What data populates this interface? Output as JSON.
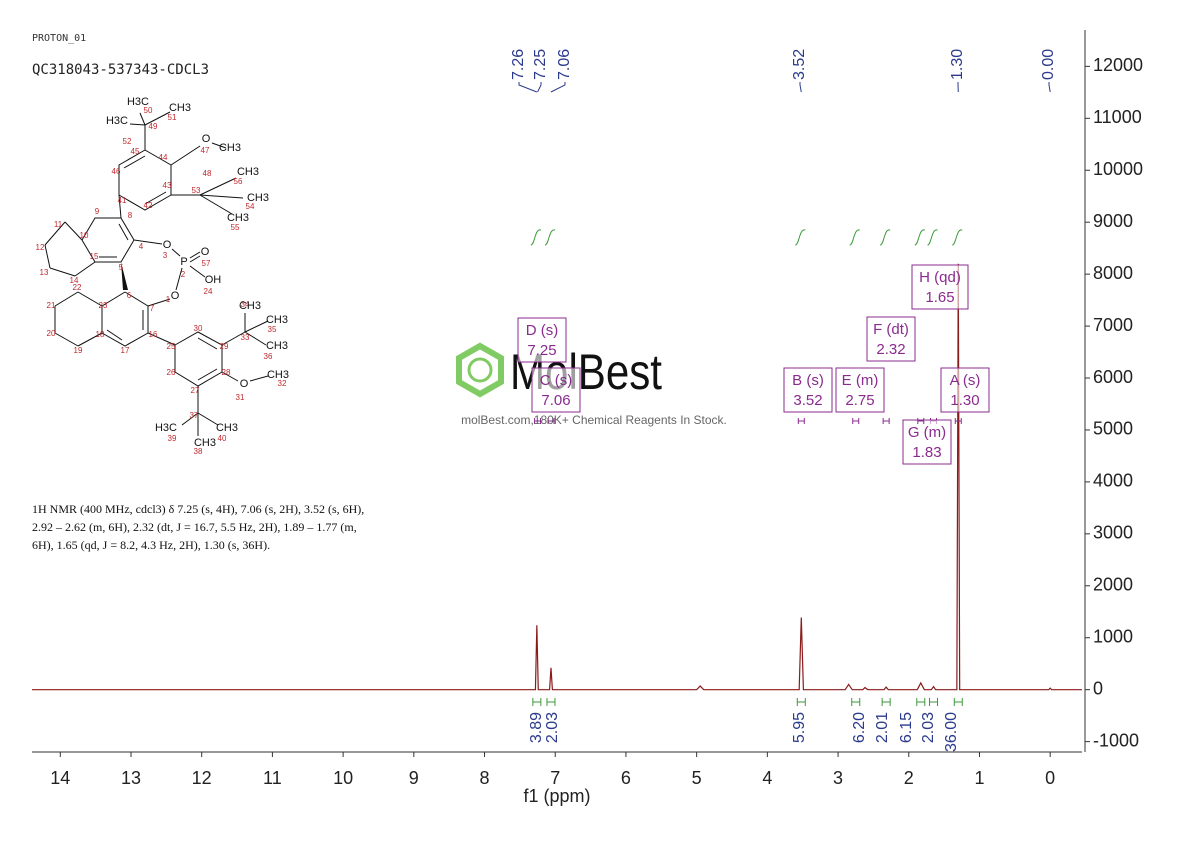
{
  "chart_data": {
    "type": "line",
    "title": "PROTON_01",
    "subtitle": "QC318043-537343-CDCL3",
    "xlabel": "f1 (ppm)",
    "color": "#8b1a1a",
    "x": [
      14.4,
      7.4,
      7.28,
      7.26,
      7.24,
      7.08,
      7.06,
      7.04,
      5.0,
      4.95,
      4.9,
      3.55,
      3.52,
      3.49,
      2.9,
      2.85,
      2.8,
      2.65,
      2.62,
      2.58,
      2.35,
      2.32,
      2.29,
      1.88,
      1.83,
      1.78,
      1.68,
      1.65,
      1.62,
      1.32,
      1.3,
      1.28,
      0.02,
      0,
      -0.02,
      -0.45
    ],
    "values": [
      0,
      0,
      0,
      1240,
      0,
      0,
      420,
      0,
      0,
      70,
      0,
      0,
      1390,
      0,
      0,
      100,
      0,
      0,
      40,
      0,
      0,
      50,
      0,
      0,
      130,
      0,
      0,
      60,
      0,
      0,
      8200,
      0,
      0,
      30,
      0,
      0
    ],
    "xlim": [
      14.4,
      -0.45
    ],
    "xticks": [
      14,
      13,
      12,
      11,
      10,
      9,
      8,
      7,
      6,
      5,
      4,
      3,
      2,
      1,
      0
    ],
    "ylim": [
      -1200,
      12700
    ],
    "yticks": [
      -1000,
      0,
      1000,
      2000,
      3000,
      4000,
      5000,
      6000,
      7000,
      8000,
      9000,
      10000,
      11000,
      12000
    ],
    "peak_labels": [
      {
        "value": 7.26,
        "label": "7.26"
      },
      {
        "value": 7.25,
        "label": "7.25"
      },
      {
        "value": 7.06,
        "label": "7.06"
      },
      {
        "value": 3.52,
        "label": "3.52"
      },
      {
        "value": 1.3,
        "label": "1.30"
      },
      {
        "value": 0,
        "label": "0.00"
      }
    ],
    "multiplets": [
      {
        "name": "D (s)",
        "shift": {
          "value": 7.25,
          "label": "7.25"
        }
      },
      {
        "name": "C (s)",
        "shift": {
          "value": 7.06,
          "label": "7.06"
        }
      },
      {
        "name": "B (s)",
        "shift": {
          "value": 3.52,
          "label": "3.52"
        }
      },
      {
        "name": "E (m)",
        "shift": {
          "value": 2.75,
          "label": "2.75"
        }
      },
      {
        "name": "F (dt)",
        "shift": {
          "value": 2.32,
          "label": "2.32"
        }
      },
      {
        "name": "H (qd)",
        "shift": {
          "value": 1.65,
          "label": "1.65"
        }
      },
      {
        "name": "A (s)",
        "shift": {
          "value": 1.3,
          "label": "1.30"
        }
      },
      {
        "name": "G (m)",
        "shift": {
          "value": 1.83,
          "label": "1.83"
        }
      }
    ],
    "integrals": [
      {
        "ppm": 7.26,
        "value": {
          "value": 3.89,
          "label": "3.89"
        }
      },
      {
        "ppm": 7.06,
        "value": {
          "value": 2.03,
          "label": "2.03"
        }
      },
      {
        "ppm": 3.52,
        "value": {
          "value": 5.95,
          "label": "5.95"
        }
      },
      {
        "ppm": 2.75,
        "value": {
          "value": 6.2,
          "label": "6.20"
        }
      },
      {
        "ppm": 2.32,
        "value": {
          "value": 2.01,
          "label": "2.01"
        }
      },
      {
        "ppm": 1.83,
        "value": {
          "value": 6.15,
          "label": "6.15"
        }
      },
      {
        "ppm": 1.65,
        "value": {
          "value": 2.03,
          "label": "2.03"
        }
      },
      {
        "ppm": 1.3,
        "value": {
          "value": 36,
          "label": "36.00"
        }
      }
    ]
  },
  "description": [
    "1H NMR (400 MHz, cdcl3) δ 7.25 (s, 4H), 7.06 (s, 2H), 3.52 (s, 6H),",
    "2.92 – 2.62 (m, 6H), 2.32 (dt, J = 16.7, 5.5 Hz, 2H), 1.89 – 1.77 (m,",
    "6H), 1.65 (qd, J = 8.2, 4.3 Hz, 2H), 1.30 (s, 36H)."
  ],
  "watermark": {
    "brand": "MolBest",
    "tagline": "molBest.com,180K+ Chemical Reagents In Stock."
  },
  "structure": {
    "atom_numbers": [
      "1",
      "2",
      "3",
      "4",
      "5",
      "6",
      "7",
      "8",
      "9",
      "10",
      "11",
      "12",
      "13",
      "14",
      "15",
      "16",
      "17",
      "18",
      "19",
      "20",
      "21",
      "22",
      "23",
      "24",
      "25",
      "26",
      "27",
      "28",
      "29",
      "30",
      "31",
      "32",
      "33",
      "34",
      "35",
      "36",
      "37",
      "38",
      "39",
      "40",
      "41",
      "42",
      "43",
      "44",
      "45",
      "46",
      "47",
      "48",
      "49",
      "50",
      "51",
      "52",
      "53",
      "54",
      "55",
      "56",
      "57"
    ],
    "groups": [
      "H3C",
      "CH3",
      "H3C",
      "O",
      "CH3",
      "CH3",
      "CH3",
      "CH3",
      "O",
      "P",
      "O",
      "OH",
      "O",
      "CH3",
      "CH3",
      "CH3",
      "O",
      "CH3",
      "H3C",
      "CH3",
      "CH3"
    ]
  }
}
